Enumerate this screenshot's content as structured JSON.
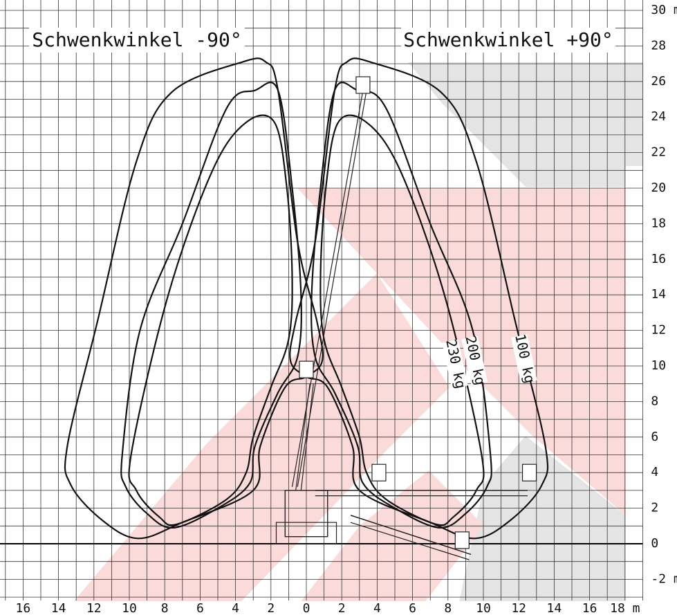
{
  "titles": {
    "left": "Schwenkwinkel -90°",
    "right": "Schwenkwinkel +90°"
  },
  "load_labels": [
    "100 kg",
    "200 kg",
    "230 kg"
  ],
  "y_axis": [
    "30 m",
    "28",
    "26",
    "24",
    "22",
    "20",
    "18",
    "16",
    "14",
    "12",
    "10",
    "8",
    "6",
    "4",
    "2",
    "0",
    "-2 m"
  ],
  "x_axis": [
    "16",
    "14",
    "12",
    "10",
    "8",
    "6",
    "4",
    "2",
    "0",
    "2",
    "4",
    "6",
    "8",
    "10",
    "12",
    "14",
    "16",
    "18 m"
  ]
}
